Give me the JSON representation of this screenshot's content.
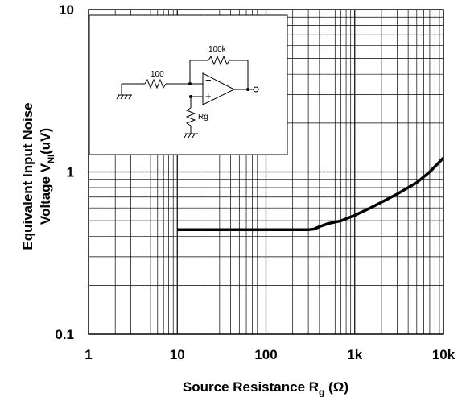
{
  "chart_data": {
    "type": "line",
    "title": "",
    "xlabel": "Source Resistance R",
    "xlabel_sub": "g",
    "xlabel_unit": " (Ω)",
    "ylabel_line1": "Equivalent Input Noise",
    "ylabel_line2": "Voltage V",
    "ylabel_sub": "NI",
    "ylabel_unit": "(uV)",
    "x_scale": "log",
    "y_scale": "log",
    "xlim": [
      1,
      10000
    ],
    "ylim": [
      0.1,
      10
    ],
    "grid": true,
    "x_ticks": [
      {
        "value": 1,
        "label": "1"
      },
      {
        "value": 10,
        "label": "10"
      },
      {
        "value": 100,
        "label": "100"
      },
      {
        "value": 1000,
        "label": "1k"
      },
      {
        "value": 10000,
        "label": "10k"
      }
    ],
    "y_ticks": [
      {
        "value": 0.1,
        "label": "0.1"
      },
      {
        "value": 1,
        "label": "1"
      },
      {
        "value": 10,
        "label": "10"
      }
    ],
    "series": [
      {
        "x": [
          10,
          20,
          50,
          100,
          200,
          300,
          350,
          400,
          500,
          700,
          1000,
          1500,
          2000,
          3000,
          5000,
          7000,
          10000
        ],
        "y": [
          0.44,
          0.44,
          0.44,
          0.44,
          0.44,
          0.44,
          0.445,
          0.46,
          0.48,
          0.5,
          0.54,
          0.6,
          0.65,
          0.73,
          0.86,
          1.0,
          1.22
        ]
      }
    ],
    "inset": {
      "r_in_label": "100",
      "r_fb_label": "100k",
      "r_g_label": "Rg",
      "minus_sign": "−",
      "plus_sign": "+"
    }
  },
  "colors": {
    "line": "#000000",
    "grid": "#000000",
    "background": "#ffffff"
  }
}
